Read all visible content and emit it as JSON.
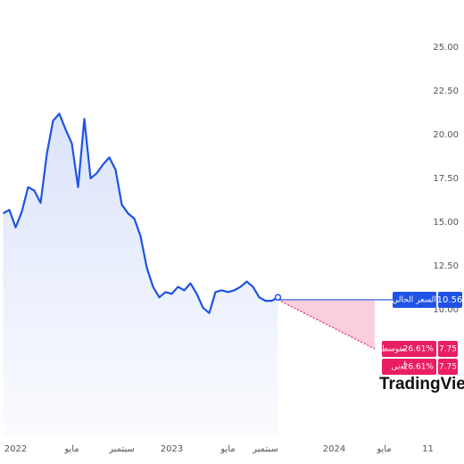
{
  "chart_data": {
    "type": "line",
    "categories": [
      null,
      null,
      "2022",
      null,
      null,
      null,
      null,
      null,
      null,
      null,
      null,
      "مايو",
      null,
      null,
      null,
      null,
      null,
      null,
      null,
      "سبتمبر",
      null,
      null,
      null,
      null,
      null,
      null,
      null,
      "2023",
      null,
      null,
      null,
      null,
      null,
      null,
      null,
      null,
      "مايو",
      null,
      null,
      null,
      null,
      null,
      "سبتمبر",
      null,
      null,
      null,
      null,
      null,
      null,
      null,
      null,
      null,
      null,
      "2024",
      null,
      null,
      null,
      null,
      null,
      null,
      null,
      "مايو",
      null,
      null,
      null,
      null,
      null,
      null,
      "11",
      null
    ],
    "series": [
      {
        "color": "#1e53e5",
        "values": [
          15.5,
          15.7,
          14.7,
          15.6,
          17.0,
          16.8,
          16.1,
          18.9,
          20.8,
          21.2,
          20.3,
          19.5,
          17.0,
          20.9,
          17.5,
          17.8,
          18.3,
          18.7,
          18.0,
          16.0,
          15.5,
          15.2,
          14.2,
          12.4,
          11.3,
          10.7,
          11.0,
          10.9,
          11.3,
          11.1,
          11.5,
          10.9,
          10.1,
          9.8,
          11.0,
          11.1,
          11.0,
          11.1,
          11.3,
          11.6,
          11.3,
          10.7,
          10.5,
          10.5,
          10.7,
          null,
          null,
          null,
          null,
          null,
          null,
          null,
          null,
          null,
          null,
          null,
          null,
          null,
          null,
          null,
          null,
          null,
          null,
          null,
          null,
          null,
          null,
          null,
          null,
          null
        ]
      }
    ],
    "ylim": [
      2.7,
      27.7
    ],
    "yticks": [
      {
        "value": 10,
        "label": "10.00"
      },
      {
        "value": 12.5,
        "label": "12.50"
      },
      {
        "value": 15,
        "label": "15.00"
      },
      {
        "value": 17.5,
        "label": "17.50"
      },
      {
        "value": 20,
        "label": "20.00"
      },
      {
        "value": 22.5,
        "label": "22.50"
      },
      {
        "value": 25,
        "label": "25.00"
      }
    ],
    "forecast": {
      "current": 10.56,
      "current_label": "السعر الحالي",
      "average": 7.75,
      "average_label": "متوسط",
      "average_change": "-26.61%",
      "low": 7.75,
      "low_label": "أدنى",
      "low_change": "-26.61%",
      "color": "#e91e63"
    },
    "watermark": "TradingView"
  }
}
